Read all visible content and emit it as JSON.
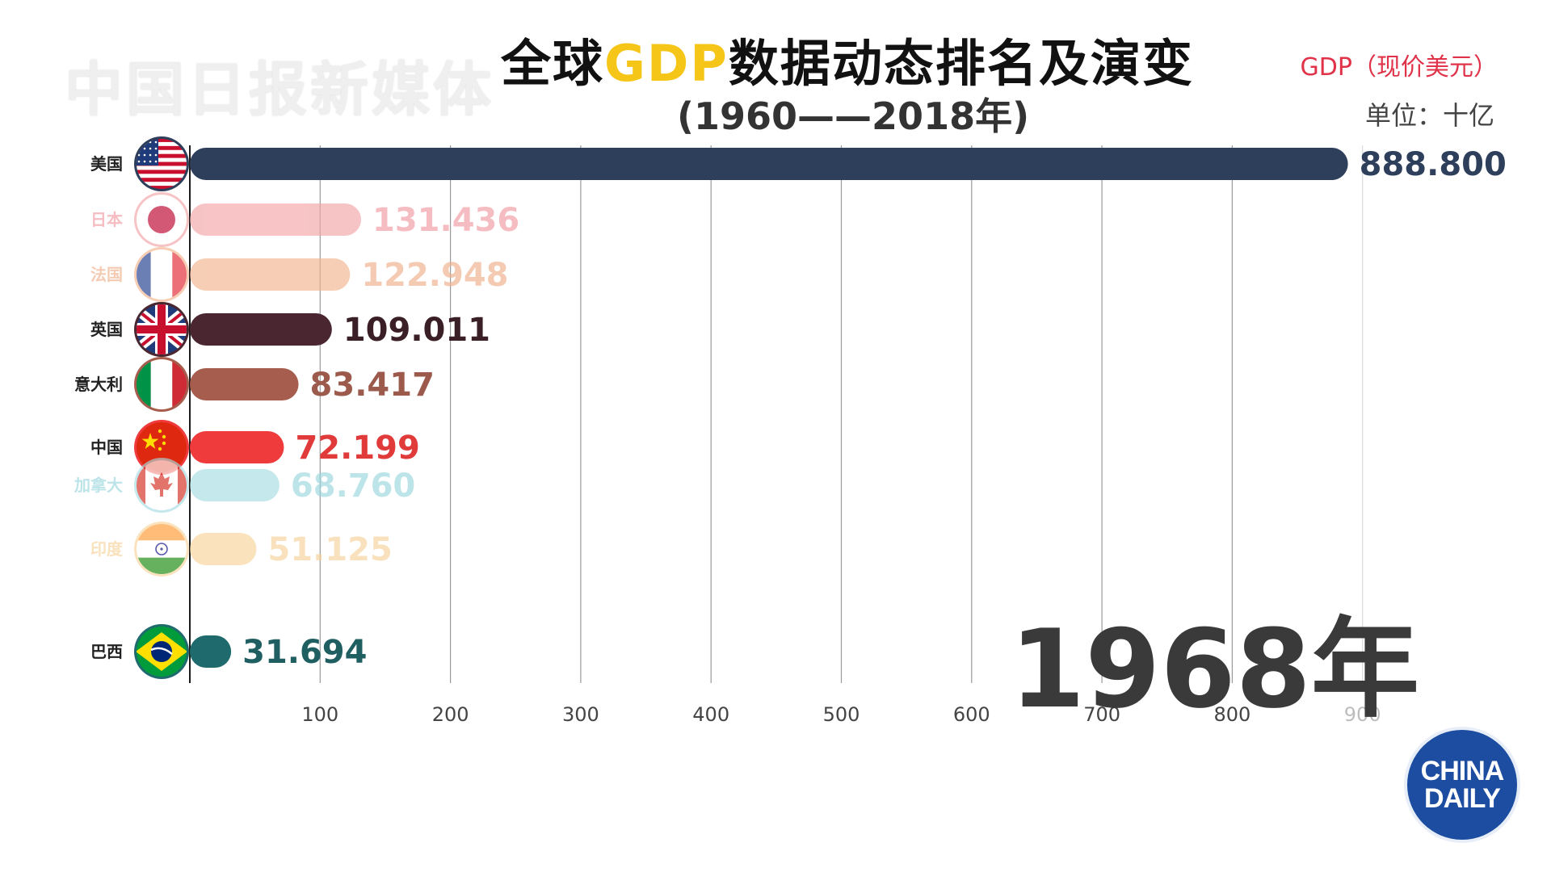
{
  "watermark": "中国日报新媒体",
  "title": {
    "prefix": "全球",
    "highlight": "GDP",
    "suffix": "数据动态排名及演变",
    "subtitle": "(1960——2018年)"
  },
  "unit": {
    "line1": "GDP（现价美元）",
    "line2": "单位：十亿"
  },
  "year_label": "1968年",
  "logo": {
    "line1": "CHINA",
    "line2": "DAILY"
  },
  "colors": {
    "axis": "#1b1b1b",
    "grid": "#9a9a9a",
    "tick_label": "#444444"
  },
  "chart_data": {
    "type": "bar",
    "orientation": "horizontal",
    "xlim": [
      0,
      900
    ],
    "xticks": [
      100,
      200,
      300,
      400,
      500,
      600,
      700,
      800,
      900
    ],
    "grid": true,
    "categories": [
      "美国",
      "日本",
      "法国",
      "英国",
      "意大利",
      "中国",
      "加拿大",
      "印度",
      "巴西"
    ],
    "values": [
      888.8,
      131.436,
      122.948,
      109.011,
      83.417,
      72.199,
      68.76,
      51.125,
      31.694
    ],
    "value_labels": [
      "888.800",
      "131.436",
      "122.948",
      "109.011",
      "83.417",
      "72.199",
      "68.760",
      "51.125",
      "31.694"
    ],
    "bar_colors": [
      "#2e3f5c",
      "#f4a5a8",
      "#f2b48e",
      "#4a2730",
      "#a65d4e",
      "#ef3b3b",
      "#a6dce2",
      "#f8d49a",
      "#1f6a6d"
    ],
    "label_colors": [
      "#2e3f5c",
      "#f09aa0",
      "#efb08a",
      "#3a1f26",
      "#9c5a4c",
      "#e13a3a",
      "#99d6de",
      "#f6d29a",
      "#1f5f62"
    ],
    "flags": [
      "us-flag-icon",
      "japan-flag-icon",
      "france-flag-icon",
      "uk-flag-icon",
      "italy-flag-icon",
      "china-flag-icon",
      "canada-flag-icon",
      "india-flag-icon",
      "brazil-flag-icon"
    ],
    "faded": [
      false,
      true,
      true,
      false,
      false,
      false,
      true,
      true,
      false
    ]
  }
}
